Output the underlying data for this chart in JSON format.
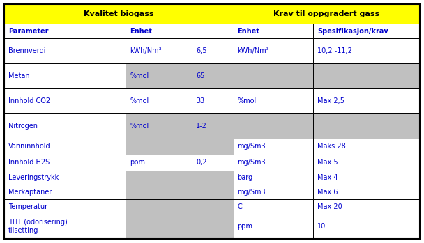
{
  "header1": "Kvalitet biogass",
  "header2": "Krav til oppgradert gass",
  "subheaders": [
    "Parameter",
    "Enhet",
    "",
    "Enhet",
    "Spesifikasjon/krav"
  ],
  "rows": [
    [
      "Brennverdi",
      "kWh/Nm³",
      "6,5",
      "kWh/Nm³",
      "10,2 -11,2"
    ],
    [
      "Metan",
      "%mol",
      "65",
      "",
      ""
    ],
    [
      "Innhold CO2",
      "%mol",
      "33",
      "%mol",
      "Max 2,5"
    ],
    [
      "Nitrogen",
      "%mol",
      "1-2",
      "",
      ""
    ],
    [
      "Vanninnhold",
      "",
      "",
      "mg/Sm3",
      "Maks 28"
    ],
    [
      "Innhold H2S",
      "ppm",
      "0,2",
      "mg/Sm3",
      "Max 5"
    ],
    [
      "Leveringstrykk",
      "",
      "",
      "barg",
      "Max 4"
    ],
    [
      "Merkaptaner",
      "",
      "",
      "mg/Sm3",
      "Max 6"
    ],
    [
      "Temperatur",
      "",
      "",
      "C",
      "Max 20"
    ],
    [
      "THT (odorisering)\ntilsetting",
      "",
      "",
      "ppm",
      "10"
    ]
  ],
  "gray_map": {
    "0": [],
    "1": [
      1,
      2,
      3,
      4
    ],
    "2": [],
    "3": [
      1,
      2,
      3,
      4
    ],
    "4": [
      1,
      2
    ],
    "5": [],
    "6": [
      1,
      2
    ],
    "7": [
      1,
      2
    ],
    "8": [
      1,
      2
    ],
    "9": [
      1,
      2
    ]
  },
  "yellow": "#FFFF00",
  "gray": "#C0C0C0",
  "white": "#FFFFFF",
  "text_color": "#0000CD",
  "border_color": "#000000",
  "header_text_color": "#000000",
  "col_props": [
    0.24,
    0.13,
    0.082,
    0.158,
    0.21
  ],
  "fig_width": 6.08,
  "fig_height": 3.49,
  "dpi": 100
}
